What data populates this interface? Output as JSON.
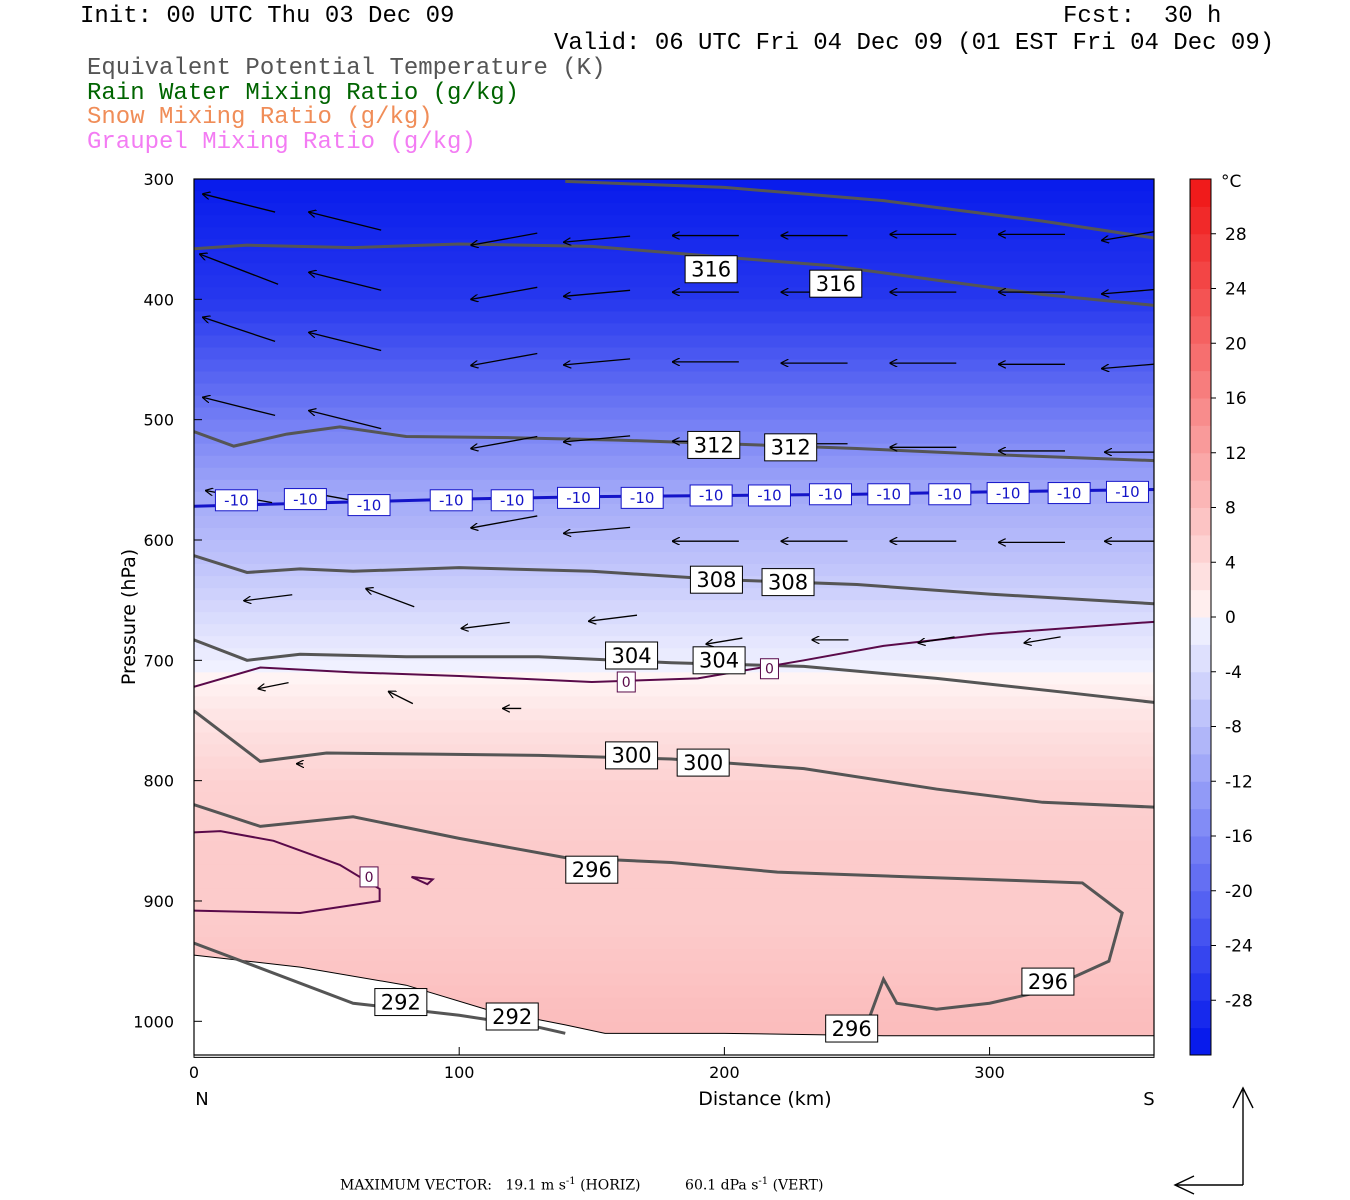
{
  "header": {
    "init": "Init: 00 UTC Thu 03 Dec 09",
    "forecast": "Fcst:  30 h",
    "valid": "Valid: 06 UTC Fri 04 Dec 09 (01 EST Fri 04 Dec 09)"
  },
  "legend": {
    "theta_e": "Equivalent Potential Temperature (K)",
    "rain": "Rain Water Mixing Ratio (g/kg)",
    "snow": "Snow Mixing Ratio (g/kg)",
    "graupel": "Graupel Mixing Ratio (g/kg)"
  },
  "colors": {
    "theta_e": "#555555",
    "rain": "#006400",
    "snow": "#f08d58",
    "graupel": "#f37cf3",
    "isotherm_minus10": "#1414c8",
    "isotherm_0": "#5a0a4a"
  },
  "footer": {
    "label": "MAXIMUM VECTOR:",
    "horiz_value": "19.1 m s",
    "horiz_exp": "-1",
    "horiz_tag": "(HORIZ)",
    "vert_value": "60.1 dPa s",
    "vert_exp": "-1",
    "vert_tag": "(VERT)"
  },
  "chart_data": {
    "type": "heatmap",
    "xlabel": "Distance (km)",
    "ylabel": "Pressure (hPa)",
    "xlim": [
      0,
      362
    ],
    "ylim": [
      1028,
      300
    ],
    "x_ticks": [
      0,
      100,
      200,
      300
    ],
    "y_ticks": [
      300,
      400,
      500,
      600,
      700,
      800,
      900,
      1000
    ],
    "x_end_labels": {
      "left": "N",
      "right": "S"
    },
    "colorbar": {
      "unit": "°C",
      "ticks": [
        28,
        24,
        20,
        16,
        12,
        8,
        4,
        0,
        -4,
        -8,
        -12,
        -16,
        -20,
        -24,
        -28
      ],
      "range": [
        -32,
        32
      ]
    },
    "theta_e_contours": [
      {
        "level": 316,
        "points": [
          [
            0,
            358
          ],
          [
            20,
            355
          ],
          [
            60,
            357
          ],
          [
            100,
            354
          ],
          [
            150,
            356
          ],
          [
            200,
            365
          ],
          [
            240,
            372
          ],
          [
            280,
            384
          ],
          [
            320,
            396
          ],
          [
            362,
            405
          ]
        ],
        "labels": [
          [
            195,
            375
          ],
          [
            242,
            387
          ]
        ]
      },
      {
        "level": 316,
        "points": [
          [
            140,
            302
          ],
          [
            200,
            307
          ],
          [
            260,
            318
          ],
          [
            320,
            335
          ],
          [
            362,
            349
          ]
        ],
        "labels": []
      },
      {
        "level": 312,
        "points": [
          [
            0,
            510
          ],
          [
            15,
            522
          ],
          [
            35,
            512
          ],
          [
            55,
            506
          ],
          [
            80,
            514
          ],
          [
            120,
            515
          ],
          [
            160,
            517
          ],
          [
            200,
            520
          ],
          [
            250,
            524
          ],
          [
            300,
            529
          ],
          [
            362,
            534
          ]
        ],
        "labels": [
          [
            196,
            521
          ],
          [
            225,
            523
          ]
        ]
      },
      {
        "level": 308,
        "points": [
          [
            0,
            613
          ],
          [
            20,
            627
          ],
          [
            40,
            624
          ],
          [
            60,
            626
          ],
          [
            100,
            623
          ],
          [
            150,
            626
          ],
          [
            200,
            633
          ],
          [
            250,
            637
          ],
          [
            300,
            645
          ],
          [
            362,
            653
          ]
        ],
        "labels": [
          [
            197,
            633
          ],
          [
            224,
            635
          ]
        ]
      },
      {
        "level": 304,
        "points": [
          [
            0,
            683
          ],
          [
            20,
            700
          ],
          [
            40,
            695
          ],
          [
            80,
            697
          ],
          [
            130,
            697
          ],
          [
            180,
            702
          ],
          [
            230,
            705
          ],
          [
            280,
            715
          ],
          [
            330,
            727
          ],
          [
            362,
            735
          ]
        ],
        "labels": [
          [
            165,
            696
          ],
          [
            198,
            700
          ]
        ]
      },
      {
        "level": 300,
        "points": [
          [
            0,
            742
          ],
          [
            25,
            784
          ],
          [
            50,
            777
          ],
          [
            90,
            778
          ],
          [
            130,
            779
          ],
          [
            180,
            782
          ],
          [
            230,
            790
          ],
          [
            280,
            807
          ],
          [
            320,
            818
          ],
          [
            362,
            822
          ]
        ],
        "labels": [
          [
            165,
            779
          ],
          [
            192,
            785
          ]
        ]
      },
      {
        "level": 296,
        "points": [
          [
            0,
            820
          ],
          [
            25,
            838
          ],
          [
            60,
            830
          ],
          [
            100,
            848
          ],
          [
            140,
            864
          ],
          [
            180,
            868
          ],
          [
            220,
            876
          ],
          [
            270,
            880
          ],
          [
            310,
            883
          ],
          [
            335,
            885
          ],
          [
            350,
            910
          ],
          [
            345,
            950
          ],
          [
            320,
            975
          ],
          [
            300,
            985
          ],
          [
            280,
            990
          ],
          [
            265,
            985
          ],
          [
            260,
            965
          ],
          [
            255,
            995
          ],
          [
            252,
            1012
          ]
        ],
        "labels": [
          [
            150,
            874
          ],
          [
            322,
            967
          ],
          [
            248,
            1006
          ]
        ]
      },
      {
        "level": 292,
        "points": [
          [
            0,
            935
          ],
          [
            60,
            985
          ],
          [
            100,
            995
          ],
          [
            130,
            1005
          ],
          [
            140,
            1010
          ]
        ],
        "labels": [
          [
            78,
            984
          ],
          [
            120,
            996
          ]
        ]
      }
    ],
    "isotherms": [
      {
        "level": -10,
        "points": [
          [
            0,
            572
          ],
          [
            50,
            569
          ],
          [
            100,
            566
          ],
          [
            150,
            564
          ],
          [
            200,
            563
          ],
          [
            250,
            562
          ],
          [
            300,
            560
          ],
          [
            362,
            558
          ]
        ],
        "labels": [
          [
            16,
            567
          ],
          [
            42,
            566
          ],
          [
            66,
            571
          ],
          [
            97,
            567
          ],
          [
            120,
            567
          ],
          [
            145,
            565
          ],
          [
            169,
            565
          ],
          [
            195,
            563
          ],
          [
            217,
            563
          ],
          [
            240,
            562
          ],
          [
            262,
            562
          ],
          [
            285,
            562
          ],
          [
            307,
            561
          ],
          [
            330,
            561
          ],
          [
            352,
            560
          ]
        ]
      },
      {
        "level": 0,
        "points": [
          [
            0,
            722
          ],
          [
            25,
            706
          ],
          [
            60,
            710
          ],
          [
            100,
            713
          ],
          [
            150,
            718
          ],
          [
            190,
            715
          ],
          [
            230,
            700
          ],
          [
            260,
            688
          ],
          [
            300,
            678
          ],
          [
            362,
            668
          ]
        ],
        "labels": [
          [
            163,
            718
          ],
          [
            217,
            707
          ]
        ]
      },
      {
        "level": 0,
        "points": [
          [
            0,
            908
          ],
          [
            40,
            910
          ],
          [
            70,
            900
          ],
          [
            70,
            890
          ],
          [
            55,
            870
          ],
          [
            30,
            850
          ],
          [
            10,
            842
          ],
          [
            0,
            843
          ]
        ],
        "labels": [
          [
            66,
            880
          ]
        ]
      },
      {
        "level": 0,
        "points": [
          [
            82,
            880
          ],
          [
            88,
            886
          ],
          [
            90,
            882
          ],
          [
            82,
            880
          ]
        ],
        "labels": []
      }
    ],
    "temperature_field": [
      {
        "p": 300,
        "t": -31
      },
      {
        "p": 400,
        "t": -27
      },
      {
        "p": 450,
        "t": -22
      },
      {
        "p": 500,
        "t": -17
      },
      {
        "p": 560,
        "t": -11
      },
      {
        "p": 620,
        "t": -7
      },
      {
        "p": 660,
        "t": -4
      },
      {
        "p": 700,
        "t": -1
      },
      {
        "p": 740,
        "t": 2
      },
      {
        "p": 800,
        "t": 5
      },
      {
        "p": 860,
        "t": 6
      },
      {
        "p": 920,
        "t": 6
      },
      {
        "p": 1000,
        "t": 8
      }
    ],
    "wind_vectors": [
      [
        17,
        320,
        -24,
        -6
      ],
      [
        57,
        335,
        -24,
        -6
      ],
      [
        117,
        350,
        -22,
        4
      ],
      [
        152,
        350,
        -22,
        2
      ],
      [
        193,
        347,
        -22,
        0
      ],
      [
        234,
        347,
        -22,
        0
      ],
      [
        275,
        346,
        -22,
        0
      ],
      [
        316,
        346,
        -22,
        0
      ],
      [
        356,
        346,
        -24,
        4
      ],
      [
        17,
        375,
        -26,
        -10
      ],
      [
        57,
        385,
        -24,
        -6
      ],
      [
        117,
        395,
        -22,
        4
      ],
      [
        152,
        395,
        -22,
        2
      ],
      [
        193,
        394,
        -22,
        0
      ],
      [
        234,
        394,
        -22,
        0
      ],
      [
        275,
        394,
        -22,
        0
      ],
      [
        316,
        394,
        -22,
        0
      ],
      [
        356,
        393,
        -24,
        2
      ],
      [
        17,
        425,
        -24,
        -8
      ],
      [
        57,
        435,
        -24,
        -6
      ],
      [
        117,
        450,
        -22,
        4
      ],
      [
        152,
        452,
        -22,
        2
      ],
      [
        193,
        452,
        -22,
        0
      ],
      [
        234,
        453,
        -22,
        0
      ],
      [
        275,
        453,
        -22,
        0
      ],
      [
        316,
        454,
        -22,
        0
      ],
      [
        356,
        455,
        -24,
        2
      ],
      [
        17,
        489,
        -24,
        -6
      ],
      [
        57,
        500,
        -24,
        -6
      ],
      [
        117,
        519,
        -22,
        4
      ],
      [
        152,
        516,
        -22,
        2
      ],
      [
        193,
        518,
        -22,
        0
      ],
      [
        234,
        520,
        -22,
        0
      ],
      [
        275,
        523,
        -22,
        0
      ],
      [
        316,
        526,
        -22,
        0
      ],
      [
        356,
        527,
        -22,
        0
      ],
      [
        17,
        564,
        -22,
        -4
      ],
      [
        57,
        566,
        -22,
        -4
      ],
      [
        117,
        585,
        -22,
        4
      ],
      [
        152,
        592,
        -22,
        2
      ],
      [
        193,
        601,
        -22,
        0
      ],
      [
        234,
        601,
        -22,
        0
      ],
      [
        275,
        601,
        -22,
        0
      ],
      [
        316,
        602,
        -22,
        0
      ],
      [
        356,
        601,
        -22,
        0
      ],
      [
        28,
        648,
        -16,
        2
      ],
      [
        74,
        648,
        -16,
        -6
      ],
      [
        110,
        671,
        -16,
        2
      ],
      [
        158,
        665,
        -16,
        2
      ],
      [
        200,
        684,
        -12,
        2
      ],
      [
        240,
        683,
        -12,
        0
      ],
      [
        280,
        683,
        -12,
        2
      ],
      [
        320,
        683,
        -12,
        2
      ],
      [
        30,
        721,
        -10,
        2
      ],
      [
        78,
        731,
        -8,
        -4
      ],
      [
        120,
        740,
        -6,
        0
      ],
      [
        40,
        786,
        -2,
        0
      ]
    ]
  }
}
